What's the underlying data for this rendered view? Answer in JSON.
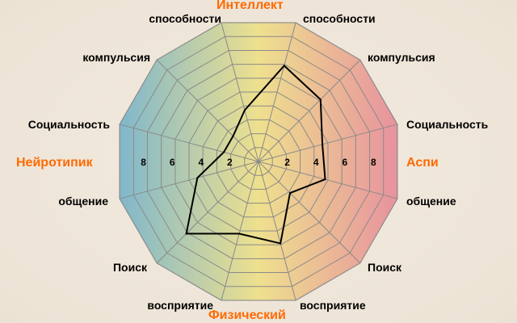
{
  "chart_data": {
    "type": "radar",
    "axes_ticks": [
      "2",
      "4",
      "6",
      "8"
    ],
    "rlim": [
      0,
      10
    ],
    "grid": true,
    "categories": {
      "top": "Интеллект",
      "bottom": "Физический",
      "left": "Нейротипик",
      "right": "Аспи"
    },
    "labels_left": [
      "способности",
      "компульсия",
      "Социальность",
      "общение",
      "Поиск",
      "восприятие"
    ],
    "labels_right": [
      "способности",
      "компульсия",
      "Социальность",
      "общение",
      "Поиск",
      "восприятие"
    ],
    "series": [
      {
        "values": [
          6.9,
          6.1,
          4.6,
          4.8,
          3.1,
          5.9,
          5.2,
          7.1,
          4.4,
          2.5,
          2.5,
          3.7
        ]
      }
    ],
    "colors": {
      "left": "#7fb7cc",
      "center": "#eee08e",
      "right": "#e8929e",
      "category": "#ff6a00",
      "grid": "#8a8a8a",
      "line": "#000000"
    }
  }
}
